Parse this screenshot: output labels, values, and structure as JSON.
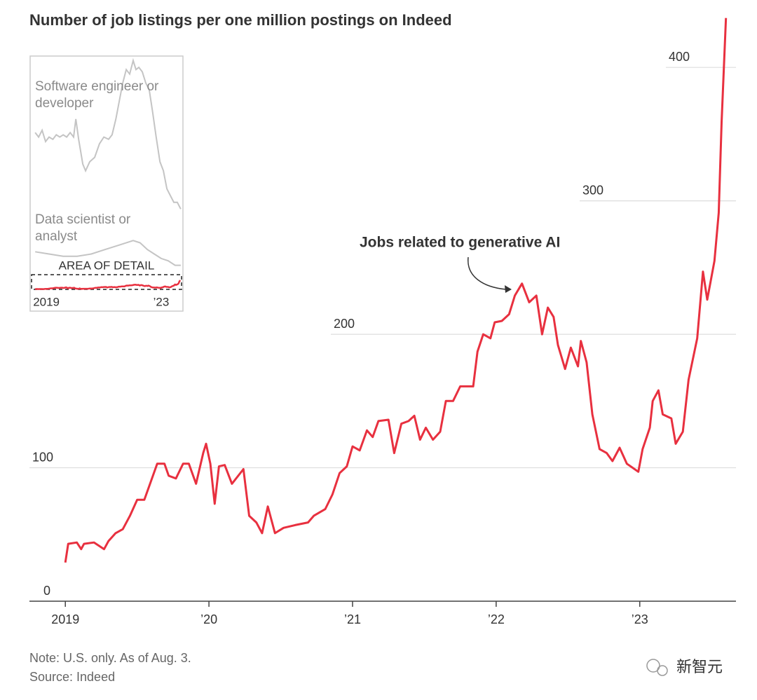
{
  "chart_data": [
    {
      "type": "line",
      "title": "Number of job listings per one million postings on Indeed",
      "annotation": "Jobs related to generative AI",
      "note": "Note: U.S. only. As of Aug. 3.",
      "source": "Source: Indeed",
      "watermark": "新智元",
      "color": "#e8303f",
      "x": [
        2019.0,
        2019.02,
        2019.08,
        2019.11,
        2019.13,
        2019.2,
        2019.27,
        2019.3,
        2019.35,
        2019.4,
        2019.45,
        2019.5,
        2019.55,
        2019.59,
        2019.64,
        2019.69,
        2019.72,
        2019.77,
        2019.82,
        2019.86,
        2019.91,
        2019.96,
        2019.98,
        2020.01,
        2020.04,
        2020.07,
        2020.11,
        2020.16,
        2020.24,
        2020.28,
        2020.33,
        2020.37,
        2020.41,
        2020.46,
        2020.52,
        2020.6,
        2020.69,
        2020.73,
        2020.81,
        2020.86,
        2020.91,
        2020.96,
        2021.0,
        2021.05,
        2021.1,
        2021.14,
        2021.18,
        2021.25,
        2021.29,
        2021.34,
        2021.39,
        2021.43,
        2021.47,
        2021.51,
        2021.56,
        2021.61,
        2021.65,
        2021.7,
        2021.75,
        2021.8,
        2021.84,
        2021.87,
        2021.91,
        2021.96,
        2021.99,
        2022.04,
        2022.09,
        2022.13,
        2022.18,
        2022.23,
        2022.28,
        2022.32,
        2022.36,
        2022.4,
        2022.43,
        2022.48,
        2022.52,
        2022.57,
        2022.59,
        2022.63,
        2022.67,
        2022.72,
        2022.77,
        2022.81,
        2022.86,
        2022.91,
        2022.95,
        2022.99,
        2023.02,
        2023.07,
        2023.09,
        2023.13,
        2023.16,
        2023.22,
        2023.25,
        2023.3,
        2023.34,
        2023.4,
        2023.44,
        2023.47,
        2023.52,
        2023.55,
        2023.57,
        2023.6
      ],
      "values": [
        29,
        43,
        44,
        39,
        43,
        44,
        39,
        45,
        51,
        54,
        64,
        76,
        76,
        88,
        103,
        103,
        94,
        92,
        103,
        103,
        88,
        111,
        118,
        103,
        73,
        101,
        102,
        88,
        99,
        64,
        59,
        51,
        71,
        51,
        55,
        57,
        59,
        64,
        69,
        80,
        96,
        101,
        116,
        113,
        128,
        123,
        135,
        136,
        111,
        133,
        135,
        139,
        121,
        130,
        121,
        127,
        150,
        150,
        161,
        161,
        161,
        187,
        200,
        197,
        209,
        210,
        215,
        229,
        238,
        224,
        229,
        200,
        220,
        213,
        192,
        174,
        190,
        176,
        195,
        179,
        140,
        114,
        111,
        105,
        115,
        103,
        100,
        97,
        114,
        130,
        150,
        158,
        140,
        137,
        118,
        127,
        166,
        197,
        247,
        226,
        255,
        291,
        359,
        437
      ],
      "xlim": [
        2018.75,
        2023.67
      ],
      "ylim": [
        0,
        440
      ],
      "xticks": [
        2019,
        {
          "value": 2020,
          "label": "’20"
        },
        {
          "value": 2021,
          "label": "’21"
        },
        {
          "value": 2022,
          "label": "’22"
        },
        {
          "value": 2023,
          "label": "’23"
        }
      ],
      "yticks": [
        0,
        100,
        200,
        300,
        400
      ],
      "grid": true
    },
    {
      "type": "line",
      "annotation": "AREA OF DETAIL",
      "xlim": [
        2018.84,
        2023.69
      ],
      "ylim": [
        -1000,
        10400
      ],
      "xticks": [
        2019,
        {
          "value": 2023,
          "label": "’23"
        }
      ],
      "series": [
        {
          "name": "Software engineer or developer",
          "color": "#c4c4c4",
          "x": [
            2019.0,
            2019.11,
            2019.22,
            2019.33,
            2019.44,
            2019.56,
            2019.67,
            2019.78,
            2019.89,
            2020.0,
            2020.11,
            2020.22,
            2020.29,
            2020.38,
            2020.51,
            2020.6,
            2020.73,
            2020.89,
            2021.04,
            2021.18,
            2021.33,
            2021.44,
            2021.56,
            2021.67,
            2021.78,
            2021.89,
            2022.0,
            2022.11,
            2022.2,
            2022.29,
            2022.4,
            2022.51,
            2022.62,
            2022.73,
            2022.84,
            2022.96,
            2023.07,
            2023.18,
            2023.29,
            2023.4,
            2023.51,
            2023.62
          ],
          "values": [
            7000,
            6800,
            7100,
            6600,
            6800,
            6700,
            6900,
            6800,
            6900,
            6800,
            7000,
            6800,
            7600,
            6700,
            5600,
            5300,
            5700,
            5900,
            6500,
            6800,
            6700,
            6900,
            7600,
            8400,
            9200,
            9800,
            9600,
            10200,
            9800,
            9900,
            9700,
            9200,
            8900,
            7900,
            6800,
            5700,
            5300,
            4500,
            4200,
            3900,
            3900,
            3600
          ]
        },
        {
          "name": "Data scientist or analyst",
          "color": "#c4c4c4",
          "x": [
            2019.0,
            2019.44,
            2019.89,
            2020.33,
            2020.78,
            2021.22,
            2021.67,
            2022.11,
            2022.33,
            2022.56,
            2022.78,
            2023.0,
            2023.22,
            2023.44,
            2023.62
          ],
          "values": [
            1700,
            1600,
            1500,
            1500,
            1600,
            1800,
            2000,
            2200,
            2100,
            1800,
            1600,
            1400,
            1300,
            1100,
            1100
          ]
        }
      ]
    }
  ]
}
